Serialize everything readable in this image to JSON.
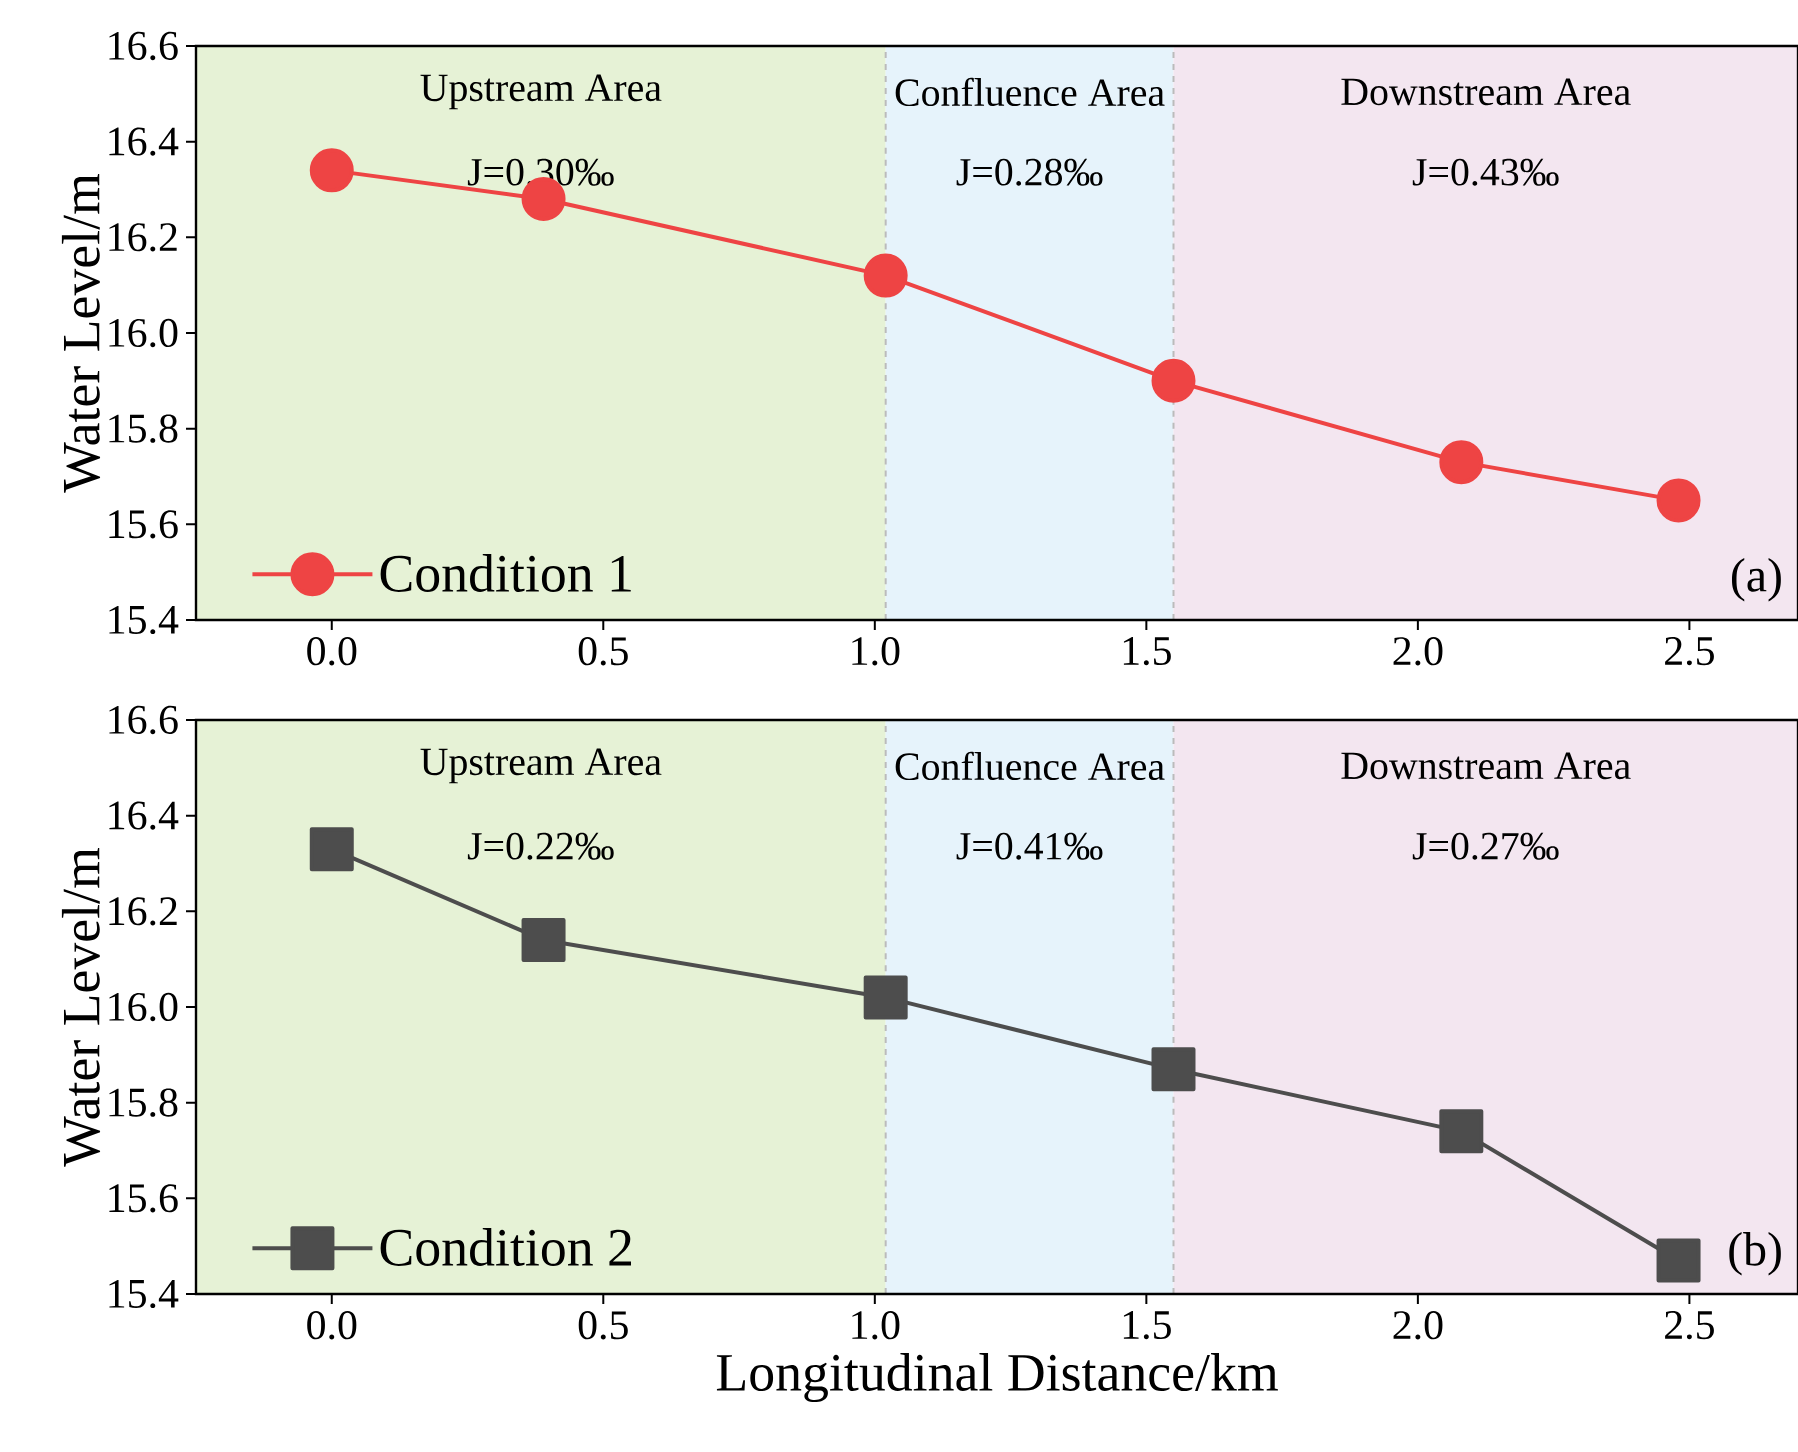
{
  "chart_data": [
    {
      "type": "line",
      "ylabel": "Water Level/m",
      "xlim": [
        -0.25,
        2.7
      ],
      "ylim": [
        15.4,
        16.6
      ],
      "xticks": [
        {
          "value": 0,
          "label": "0.0"
        },
        0.5,
        {
          "value": 1,
          "label": "1.0"
        },
        1.5,
        {
          "value": 2,
          "label": "2.0"
        },
        2.5
      ],
      "yticks": [
        15.4,
        15.6,
        15.8,
        {
          "value": 16,
          "label": "16.0"
        },
        16.2,
        16.4,
        16.6
      ],
      "x": [
        0,
        0.39,
        1.02,
        1.55,
        2.08,
        2.48
      ],
      "series": [
        {
          "name": "Condition 1",
          "color": "#ee4444",
          "values": [
            16.34,
            16.28,
            16.12,
            15.9,
            15.73,
            15.65
          ]
        }
      ],
      "marker": "circle",
      "line_style": "solid",
      "legend": "bottom left",
      "grid": false,
      "bands": [
        {
          "axis": "x",
          "from": -0.25,
          "to": 1.02,
          "label": "Upstream Area",
          "color": "#e6f2d6"
        },
        {
          "axis": "x",
          "from": 1.02,
          "to": 1.55,
          "label": "Confluence Area",
          "color": "#e6f3fb"
        },
        {
          "axis": "x",
          "from": 1.55,
          "to": 2.7,
          "label": "Downstream Area",
          "color": "#f3e6f0"
        }
      ],
      "ref_lines": [
        {
          "axis": "x",
          "value": 1.02,
          "color": "#bbbbbb",
          "line_style": "dashed"
        },
        {
          "axis": "x",
          "value": 1.55,
          "color": "#bbbbbb",
          "line_style": "dashed"
        }
      ],
      "annotations": [
        "J=0.30‰",
        "J=0.28‰",
        "J=0.43‰",
        "(a)"
      ]
    },
    {
      "type": "line",
      "ylabel": "Water Level/m",
      "xlabel": "Longitudinal Distance/km",
      "xlim": [
        -0.25,
        2.7
      ],
      "ylim": [
        15.4,
        16.6
      ],
      "xticks": [
        {
          "value": 0,
          "label": "0.0"
        },
        0.5,
        {
          "value": 1,
          "label": "1.0"
        },
        1.5,
        {
          "value": 2,
          "label": "2.0"
        },
        2.5
      ],
      "yticks": [
        15.4,
        15.6,
        15.8,
        {
          "value": 16,
          "label": "16.0"
        },
        16.2,
        16.4,
        16.6
      ],
      "x": [
        0,
        0.39,
        1.02,
        1.55,
        2.08,
        2.48
      ],
      "series": [
        {
          "name": "Condition 2",
          "color": "#4d4d4d",
          "values": [
            16.33,
            16.14,
            16.02,
            15.87,
            15.74,
            15.47
          ]
        }
      ],
      "marker": "square",
      "line_style": "solid",
      "legend": "bottom left",
      "grid": false,
      "bands": [
        {
          "axis": "x",
          "from": -0.25,
          "to": 1.02,
          "label": "Upstream Area",
          "color": "#e6f2d6"
        },
        {
          "axis": "x",
          "from": 1.02,
          "to": 1.55,
          "label": "Confluence Area",
          "color": "#e6f3fb"
        },
        {
          "axis": "x",
          "from": 1.55,
          "to": 2.7,
          "label": "Downstream Area",
          "color": "#f3e6f0"
        }
      ],
      "ref_lines": [
        {
          "axis": "x",
          "value": 1.02,
          "color": "#bbbbbb",
          "line_style": "dashed"
        },
        {
          "axis": "x",
          "value": 1.55,
          "color": "#bbbbbb",
          "line_style": "dashed"
        }
      ],
      "annotations": [
        "J=0.22‰",
        "J=0.41‰",
        "J=0.27‰",
        "(b)"
      ]
    }
  ]
}
